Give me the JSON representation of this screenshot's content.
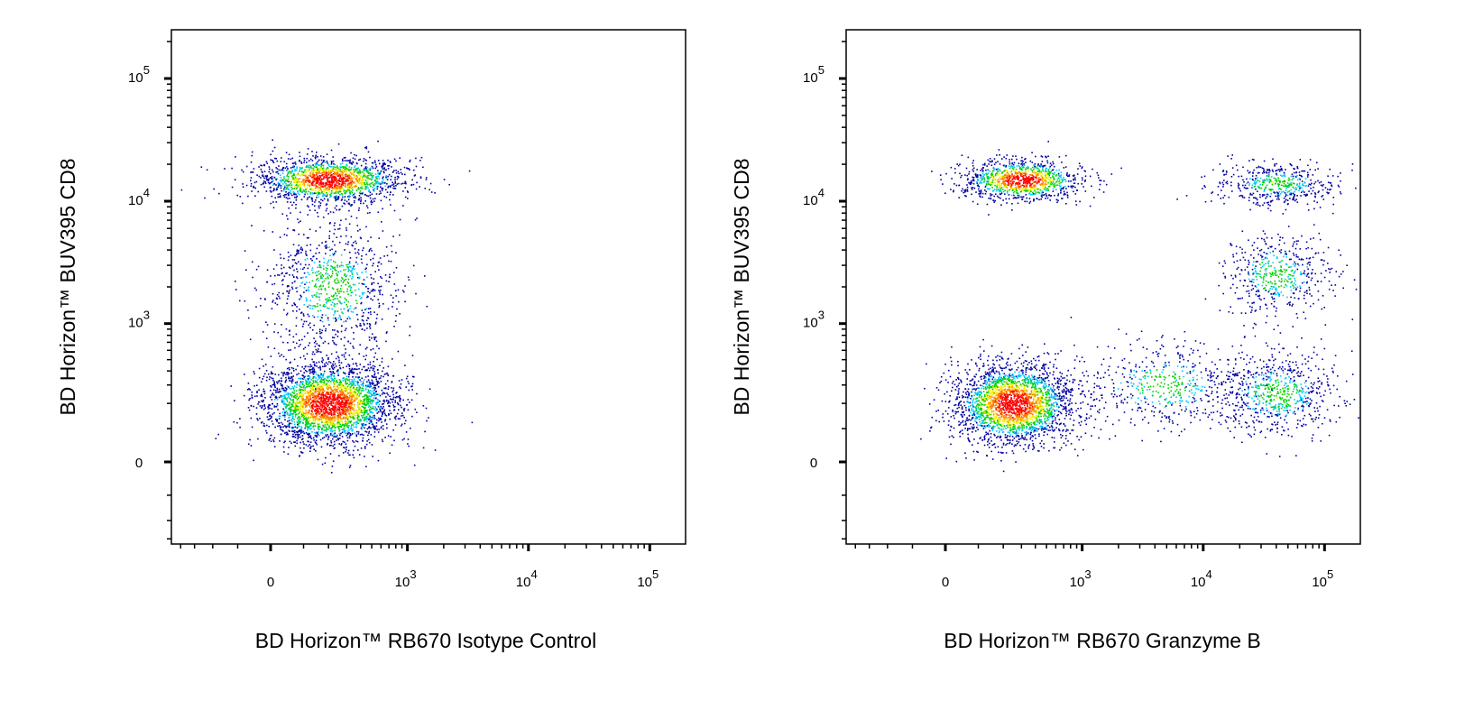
{
  "chart_data": [
    {
      "type": "scatter",
      "subtype": "flow-cytometry-pseudocolor-dot-plot",
      "xlabel": "BD Horizon™ RB670 Isotype Control",
      "ylabel": "BD Horizon™ BUV395 CD8",
      "x_scale": "biexponential",
      "y_scale": "biexponential",
      "xlim": [
        -485,
        250000
      ],
      "ylim": [
        -335,
        250000
      ],
      "x_ticks": [
        {
          "base": "0",
          "exp": ""
        },
        {
          "base": "10",
          "exp": "3"
        },
        {
          "base": "10",
          "exp": "4"
        },
        {
          "base": "10",
          "exp": "5"
        }
      ],
      "y_ticks": [
        {
          "base": "0",
          "exp": ""
        },
        {
          "base": "10",
          "exp": "3"
        },
        {
          "base": "10",
          "exp": "4"
        },
        {
          "base": "10",
          "exp": "5"
        }
      ],
      "grid": false,
      "color_scale": [
        "#0000a0",
        "#00c8ff",
        "#00d000",
        "#f0f000",
        "#ff8000",
        "#ff0000"
      ],
      "populations": [
        {
          "x": 200,
          "y": 15000,
          "events": 1700
        },
        {
          "x": 200,
          "y": 200,
          "events": 3000
        },
        {
          "x": 220,
          "y": 2000,
          "events": 900
        }
      ]
    },
    {
      "type": "scatter",
      "subtype": "flow-cytometry-pseudocolor-dot-plot",
      "xlabel": "BD Horizon™ RB670 Granzyme B",
      "ylabel": "BD Horizon™ BUV395 CD8",
      "x_scale": "biexponential",
      "y_scale": "biexponential",
      "xlim": [
        -485,
        250000
      ],
      "ylim": [
        -335,
        250000
      ],
      "x_ticks": [
        {
          "base": "0",
          "exp": ""
        },
        {
          "base": "10",
          "exp": "3"
        },
        {
          "base": "10",
          "exp": "4"
        },
        {
          "base": "10",
          "exp": "5"
        }
      ],
      "y_ticks": [
        {
          "base": "0",
          "exp": ""
        },
        {
          "base": "10",
          "exp": "3"
        },
        {
          "base": "10",
          "exp": "4"
        },
        {
          "base": "10",
          "exp": "5"
        }
      ],
      "grid": false,
      "color_scale": [
        "#0000a0",
        "#00c8ff",
        "#00d000",
        "#f0f000",
        "#ff8000",
        "#ff0000"
      ],
      "populations": [
        {
          "x": 300,
          "y": 15000,
          "events": 1100
        },
        {
          "x": 250,
          "y": 200,
          "events": 2600
        },
        {
          "x": 40000,
          "y": 14000,
          "events": 500
        },
        {
          "x": 40000,
          "y": 2500,
          "events": 500
        },
        {
          "x": 40000,
          "y": 250,
          "events": 700
        },
        {
          "x": 5000,
          "y": 300,
          "events": 500
        }
      ]
    }
  ]
}
